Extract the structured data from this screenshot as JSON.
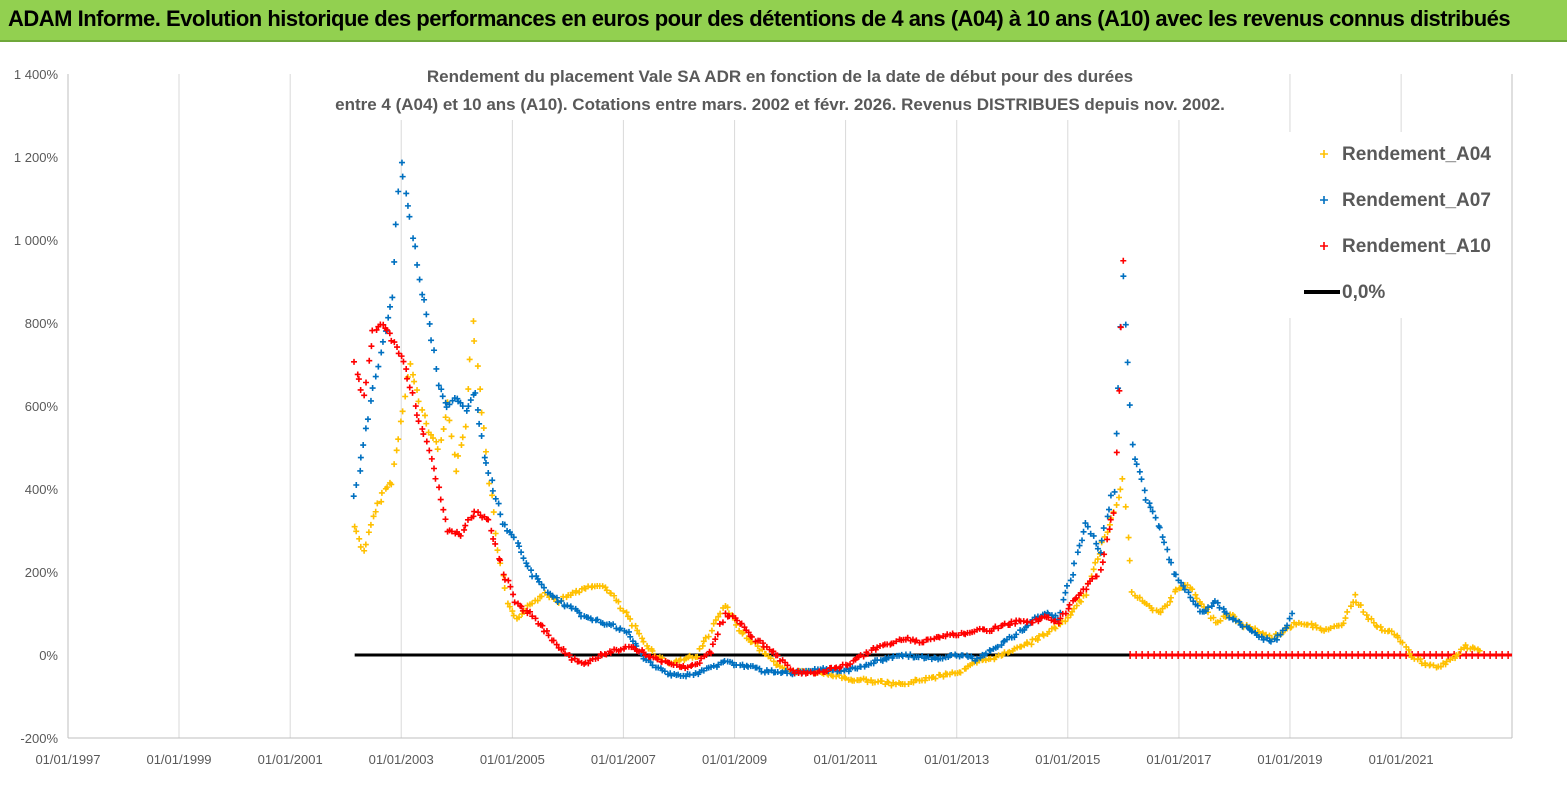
{
  "banner": {
    "title": "ADAM Informe. Evolution historique des performances en euros pour des détentions de 4 ans (A04) à 10 ans (A10) avec les revenus connus distribués"
  },
  "chart_data": {
    "type": "scatter",
    "title_line1": "Rendement du placement Vale SA ADR en fonction de la date de début pour des durées",
    "title_line2": "entre 4 (A04) et 10 ans (A10).  Cotations entre mars. 2002 et févr. 2026. Revenus DISTRIBUES depuis nov. 2002.",
    "xlim": [
      "1997-01-01",
      "2022-12-31"
    ],
    "ylim": [
      -200,
      1400
    ],
    "ytick_values": [
      -200,
      0,
      200,
      400,
      600,
      800,
      1000,
      1200,
      1400
    ],
    "ytick_labels": [
      "-200%",
      "0%",
      "200%",
      "400%",
      "600%",
      "800%",
      "1 000%",
      "1 200%",
      "1 400%"
    ],
    "xtick_values": [
      "1997-01-01",
      "1999-01-01",
      "2001-01-01",
      "2003-01-01",
      "2005-01-01",
      "2007-01-01",
      "2009-01-01",
      "2011-01-01",
      "2013-01-01",
      "2015-01-01",
      "2017-01-01",
      "2019-01-01",
      "2021-01-01"
    ],
    "xtick_labels": [
      "01/01/1997",
      "01/01/1999",
      "01/01/2001",
      "01/01/2003",
      "01/01/2005",
      "01/01/2007",
      "01/01/2009",
      "01/01/2011",
      "01/01/2013",
      "01/01/2015",
      "01/01/2017",
      "01/01/2019",
      "01/01/2021"
    ],
    "grid": "vertical",
    "legend_position": "top-right",
    "series": [
      {
        "name": "Rendement_A04",
        "color": "#ffc000",
        "marker": "plus",
        "points": [
          [
            "2002-03-01",
            310
          ],
          [
            "2002-05-01",
            250
          ],
          [
            "2002-07-01",
            330
          ],
          [
            "2002-09-01",
            390
          ],
          [
            "2002-11-01",
            420
          ],
          [
            "2003-01-01",
            560
          ],
          [
            "2003-03-01",
            700
          ],
          [
            "2003-05-01",
            610
          ],
          [
            "2003-07-01",
            540
          ],
          [
            "2003-09-01",
            500
          ],
          [
            "2003-11-01",
            600
          ],
          [
            "2004-01-01",
            450
          ],
          [
            "2004-03-01",
            560
          ],
          [
            "2004-04-15",
            800
          ],
          [
            "2004-06-01",
            650
          ],
          [
            "2004-08-01",
            420
          ],
          [
            "2004-10-01",
            250
          ],
          [
            "2004-12-01",
            120
          ],
          [
            "2005-02-01",
            90
          ],
          [
            "2005-05-01",
            120
          ],
          [
            "2005-08-01",
            150
          ],
          [
            "2005-11-01",
            130
          ],
          [
            "2006-02-01",
            150
          ],
          [
            "2006-05-01",
            160
          ],
          [
            "2006-08-01",
            170
          ],
          [
            "2006-11-01",
            140
          ],
          [
            "2007-02-01",
            90
          ],
          [
            "2007-05-01",
            40
          ],
          [
            "2007-08-01",
            0
          ],
          [
            "2007-11-01",
            -20
          ],
          [
            "2008-02-01",
            -10
          ],
          [
            "2008-05-01",
            0
          ],
          [
            "2008-08-01",
            60
          ],
          [
            "2008-11-01",
            120
          ],
          [
            "2009-02-01",
            60
          ],
          [
            "2009-05-01",
            30
          ],
          [
            "2009-08-01",
            0
          ],
          [
            "2009-11-01",
            -30
          ],
          [
            "2010-02-01",
            -40
          ],
          [
            "2010-05-01",
            -40
          ],
          [
            "2010-08-01",
            -45
          ],
          [
            "2010-11-01",
            -50
          ],
          [
            "2011-02-01",
            -60
          ],
          [
            "2011-05-01",
            -60
          ],
          [
            "2011-08-01",
            -65
          ],
          [
            "2011-11-01",
            -70
          ],
          [
            "2012-02-01",
            -70
          ],
          [
            "2012-05-01",
            -60
          ],
          [
            "2012-08-01",
            -55
          ],
          [
            "2012-11-01",
            -45
          ],
          [
            "2013-02-01",
            -40
          ],
          [
            "2013-05-01",
            -20
          ],
          [
            "2013-08-01",
            -10
          ],
          [
            "2013-11-01",
            0
          ],
          [
            "2014-02-01",
            20
          ],
          [
            "2014-05-01",
            30
          ],
          [
            "2014-08-01",
            50
          ],
          [
            "2014-11-01",
            70
          ],
          [
            "2015-02-01",
            100
          ],
          [
            "2015-05-01",
            150
          ],
          [
            "2015-08-01",
            250
          ],
          [
            "2015-11-01",
            350
          ],
          [
            "2016-01-01",
            420
          ],
          [
            "2016-03-01",
            150
          ],
          [
            "2016-06-01",
            120
          ],
          [
            "2016-09-01",
            100
          ],
          [
            "2016-12-01",
            150
          ],
          [
            "2017-03-01",
            170
          ],
          [
            "2017-06-01",
            120
          ],
          [
            "2017-09-01",
            80
          ],
          [
            "2017-12-01",
            100
          ],
          [
            "2018-03-01",
            70
          ],
          [
            "2018-06-01",
            60
          ],
          [
            "2018-09-01",
            40
          ],
          [
            "2018-12-01",
            60
          ],
          [
            "2019-03-01",
            80
          ],
          [
            "2019-06-01",
            70
          ],
          [
            "2019-09-01",
            60
          ],
          [
            "2019-12-01",
            70
          ],
          [
            "2020-03-01",
            140
          ],
          [
            "2020-06-01",
            90
          ],
          [
            "2020-09-01",
            60
          ],
          [
            "2020-12-01",
            50
          ],
          [
            "2021-03-01",
            0
          ],
          [
            "2021-06-01",
            -20
          ],
          [
            "2021-09-01",
            -30
          ],
          [
            "2021-12-01",
            -10
          ],
          [
            "2022-03-01",
            20
          ],
          [
            "2022-06-01",
            10
          ]
        ]
      },
      {
        "name": "Rendement_A07",
        "color": "#0070c0",
        "marker": "plus",
        "points": [
          [
            "2002-03-01",
            380
          ],
          [
            "2002-05-01",
            500
          ],
          [
            "2002-07-01",
            650
          ],
          [
            "2002-09-01",
            750
          ],
          [
            "2002-11-01",
            870
          ],
          [
            "2003-01-01",
            1180
          ],
          [
            "2003-03-01",
            1050
          ],
          [
            "2003-05-01",
            900
          ],
          [
            "2003-07-01",
            800
          ],
          [
            "2003-09-01",
            650
          ],
          [
            "2003-11-01",
            600
          ],
          [
            "2004-01-01",
            620
          ],
          [
            "2004-03-01",
            590
          ],
          [
            "2004-05-01",
            640
          ],
          [
            "2004-07-01",
            480
          ],
          [
            "2004-09-01",
            400
          ],
          [
            "2004-11-01",
            320
          ],
          [
            "2005-02-01",
            270
          ],
          [
            "2005-05-01",
            200
          ],
          [
            "2005-08-01",
            160
          ],
          [
            "2005-11-01",
            130
          ],
          [
            "2006-02-01",
            110
          ],
          [
            "2006-05-01",
            90
          ],
          [
            "2006-08-01",
            80
          ],
          [
            "2006-11-01",
            70
          ],
          [
            "2007-02-01",
            50
          ],
          [
            "2007-05-01",
            0
          ],
          [
            "2007-08-01",
            -30
          ],
          [
            "2007-11-01",
            -45
          ],
          [
            "2008-02-01",
            -50
          ],
          [
            "2008-05-01",
            -45
          ],
          [
            "2008-08-01",
            -30
          ],
          [
            "2008-11-01",
            -15
          ],
          [
            "2009-02-01",
            -25
          ],
          [
            "2009-05-01",
            -30
          ],
          [
            "2009-08-01",
            -40
          ],
          [
            "2009-11-01",
            -40
          ],
          [
            "2010-02-01",
            -45
          ],
          [
            "2010-05-01",
            -40
          ],
          [
            "2010-08-01",
            -35
          ],
          [
            "2010-11-01",
            -40
          ],
          [
            "2011-02-01",
            -35
          ],
          [
            "2011-05-01",
            -25
          ],
          [
            "2011-08-01",
            -15
          ],
          [
            "2011-11-01",
            -5
          ],
          [
            "2012-02-01",
            0
          ],
          [
            "2012-05-01",
            -5
          ],
          [
            "2012-08-01",
            -10
          ],
          [
            "2012-11-01",
            -5
          ],
          [
            "2013-02-01",
            0
          ],
          [
            "2013-05-01",
            -10
          ],
          [
            "2013-08-01",
            10
          ],
          [
            "2013-11-01",
            30
          ],
          [
            "2014-02-01",
            50
          ],
          [
            "2014-05-01",
            80
          ],
          [
            "2014-08-01",
            100
          ],
          [
            "2014-11-01",
            90
          ],
          [
            "2015-02-01",
            200
          ],
          [
            "2015-05-01",
            320
          ],
          [
            "2015-08-01",
            250
          ],
          [
            "2015-11-01",
            400
          ],
          [
            "2016-01-01",
            900
          ],
          [
            "2016-03-01",
            500
          ],
          [
            "2016-06-01",
            380
          ],
          [
            "2016-09-01",
            300
          ],
          [
            "2016-12-01",
            200
          ],
          [
            "2017-03-01",
            150
          ],
          [
            "2017-06-01",
            100
          ],
          [
            "2017-09-01",
            130
          ],
          [
            "2017-12-01",
            90
          ],
          [
            "2018-03-01",
            70
          ],
          [
            "2018-06-01",
            50
          ],
          [
            "2018-09-01",
            30
          ],
          [
            "2018-12-01",
            60
          ],
          [
            "2019-01-15",
            100
          ]
        ]
      },
      {
        "name": "Rendement_A10",
        "color": "#ff0000",
        "marker": "plus",
        "points": [
          [
            "2002-03-01",
            700
          ],
          [
            "2002-05-01",
            620
          ],
          [
            "2002-07-01",
            780
          ],
          [
            "2002-09-01",
            800
          ],
          [
            "2002-11-01",
            760
          ],
          [
            "2003-01-01",
            720
          ],
          [
            "2003-03-01",
            650
          ],
          [
            "2003-05-01",
            560
          ],
          [
            "2003-07-01",
            500
          ],
          [
            "2003-09-01",
            400
          ],
          [
            "2003-11-01",
            300
          ],
          [
            "2004-02-01",
            290
          ],
          [
            "2004-05-01",
            350
          ],
          [
            "2004-08-01",
            320
          ],
          [
            "2004-11-01",
            200
          ],
          [
            "2005-02-01",
            120
          ],
          [
            "2005-05-01",
            100
          ],
          [
            "2005-08-01",
            60
          ],
          [
            "2005-11-01",
            20
          ],
          [
            "2006-02-01",
            -10
          ],
          [
            "2006-05-01",
            -20
          ],
          [
            "2006-08-01",
            0
          ],
          [
            "2006-11-01",
            10
          ],
          [
            "2007-02-01",
            20
          ],
          [
            "2007-05-01",
            10
          ],
          [
            "2007-08-01",
            -10
          ],
          [
            "2007-11-01",
            -20
          ],
          [
            "2008-02-01",
            -30
          ],
          [
            "2008-05-01",
            -20
          ],
          [
            "2008-08-01",
            10
          ],
          [
            "2008-11-01",
            100
          ],
          [
            "2009-02-01",
            80
          ],
          [
            "2009-05-01",
            40
          ],
          [
            "2009-08-01",
            20
          ],
          [
            "2009-11-01",
            -10
          ],
          [
            "2010-02-01",
            -40
          ],
          [
            "2010-05-01",
            -45
          ],
          [
            "2010-08-01",
            -40
          ],
          [
            "2010-11-01",
            -30
          ],
          [
            "2011-02-01",
            -20
          ],
          [
            "2011-05-01",
            0
          ],
          [
            "2011-08-01",
            20
          ],
          [
            "2011-11-01",
            30
          ],
          [
            "2012-02-01",
            40
          ],
          [
            "2012-05-01",
            30
          ],
          [
            "2012-08-01",
            40
          ],
          [
            "2012-11-01",
            50
          ],
          [
            "2013-02-01",
            50
          ],
          [
            "2013-05-01",
            60
          ],
          [
            "2013-08-01",
            60
          ],
          [
            "2013-11-01",
            70
          ],
          [
            "2014-02-01",
            80
          ],
          [
            "2014-05-01",
            80
          ],
          [
            "2014-08-01",
            90
          ],
          [
            "2014-11-01",
            80
          ],
          [
            "2015-02-01",
            130
          ],
          [
            "2015-05-01",
            160
          ],
          [
            "2015-08-01",
            200
          ],
          [
            "2015-11-01",
            350
          ],
          [
            "2016-01-01",
            950
          ]
        ]
      }
    ],
    "zero_line": {
      "name": "0,0%",
      "color": "#000000",
      "value": 0,
      "from": "2002-03-01",
      "to": "2016-02-15"
    },
    "a10_zero_run": {
      "from": "2016-02-15",
      "to": "2022-12-31",
      "value": 0,
      "color": "#ff0000"
    }
  }
}
